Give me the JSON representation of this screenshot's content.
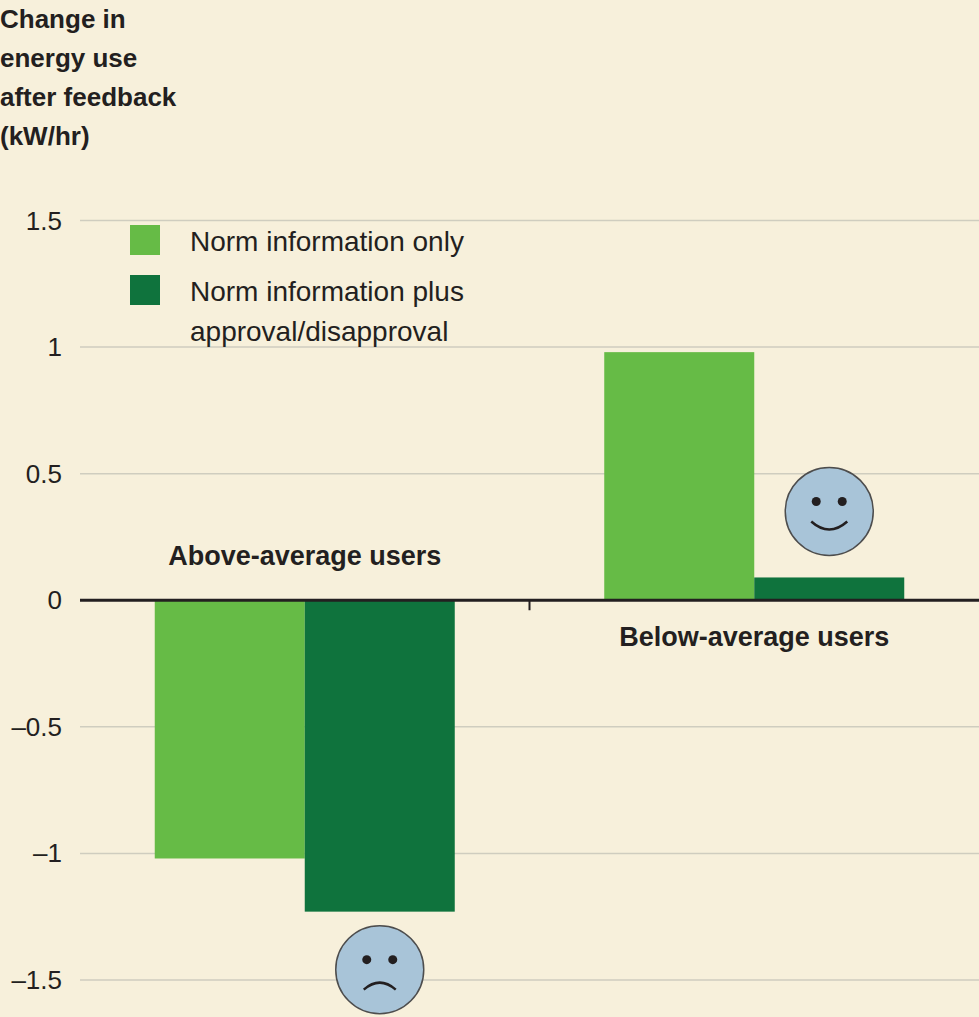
{
  "chart_data": {
    "type": "bar",
    "y_label": [
      "Change in",
      "energy use",
      "after feedback",
      "(kW/hr)"
    ],
    "categories": [
      "Above-average users",
      "Below-average users"
    ],
    "series": [
      {
        "name": "Norm information only",
        "color": "#66bb46",
        "values": [
          -1.02,
          0.98
        ]
      },
      {
        "name": "Norm information plus approval/disapproval",
        "color": "#0f733d",
        "values": [
          -1.23,
          0.09
        ]
      }
    ],
    "ylim": [
      -1.5,
      1.5
    ],
    "yticks": [
      {
        "value": -1.5,
        "label": "–1.5"
      },
      {
        "value": -1,
        "label": "–1"
      },
      {
        "value": -0.5,
        "label": "–0.5"
      },
      0,
      0.5,
      1,
      1.5
    ],
    "grid": true,
    "legend": "top-left"
  }
}
